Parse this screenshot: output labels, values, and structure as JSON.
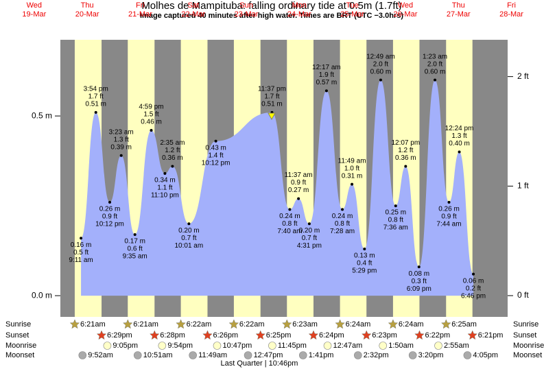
{
  "chart_data": {
    "type": "area",
    "title": "Molhes de Mampituba: falling  ordinary tide at 0.5m (1.7ft)",
    "subtitle": "Image captured 40 minutes after high water. Times are BRT (UTC −3.0hrs)",
    "moon_phase": "Last Quarter | 10:46pm",
    "days": {
      "weekday": [
        "Wed",
        "Thu",
        "Fri",
        "Sat",
        "Sun",
        "Mon",
        "Tue",
        "Wed",
        "Thu",
        "Fri"
      ],
      "date": [
        "19-Mar",
        "20-Mar",
        "21-Mar",
        "22-Mar",
        "23-Mar",
        "24-Mar",
        "25-Mar",
        "26-Mar",
        "27-Mar",
        "28-Mar"
      ]
    },
    "ylim": [
      -0.059,
      0.712
    ],
    "yticks": [
      {
        "value": 0,
        "label": "0.0 m"
      },
      {
        "value": 0.5,
        "label": "0.5 m"
      }
    ],
    "y2lim": [
      -0.194,
      2.336
    ],
    "y2ticks": [
      {
        "value": 0,
        "label": "0 ft"
      },
      {
        "value": 1,
        "label": "1 ft"
      },
      {
        "value": 2,
        "label": "2 ft"
      }
    ],
    "color": "#a3b0fb",
    "tides": {
      "day": [
        "20-Mar",
        "20-Mar",
        "20-Mar",
        "21-Mar",
        "21-Mar",
        "21-Mar",
        "21-Mar",
        "22-Mar",
        "22-Mar",
        "22-Mar",
        "23-Mar",
        "24-Mar",
        "24-Mar",
        "24-Mar",
        "25-Mar",
        "25-Mar",
        "25-Mar",
        "25-Mar",
        "26-Mar",
        "26-Mar",
        "26-Mar",
        "26-Mar",
        "27-Mar",
        "27-Mar",
        "27-Mar",
        "27-Mar"
      ],
      "time": [
        "9:11 am",
        "3:54 pm",
        "10:12 pm",
        "3:23 am",
        "9:35 am",
        "4:59 pm",
        "11:10 pm",
        "2:35 am",
        "10:01 am",
        "10:12 pm",
        "11:37 pm",
        "7:40 am",
        "11:37 am",
        "4:31 pm",
        "12:17 am",
        "7:28 am",
        "11:49 am",
        "5:29 pm",
        "12:49 am",
        "7:36 am",
        "12:07 pm",
        "6:09 pm",
        "1:23 am",
        "7:44 am",
        "12:24 pm",
        "6:46 pm"
      ],
      "values": [
        0.16,
        0.51,
        0.26,
        0.39,
        0.17,
        0.46,
        0.34,
        0.36,
        0.2,
        0.43,
        0.51,
        0.24,
        0.27,
        0.2,
        0.57,
        0.24,
        0.31,
        0.13,
        0.6,
        0.25,
        0.36,
        0.08,
        0.6,
        0.26,
        0.4,
        0.06
      ],
      "value_labels": [
        "0.16 m",
        "0.51 m",
        "0.26 m",
        "0.39 m",
        "0.17 m",
        "0.46 m",
        "0.34 m",
        "0.36 m",
        "0.20 m",
        "0.43 m",
        "0.51 m",
        "0.24 m",
        "0.27 m",
        "0.20 m",
        "0.57 m",
        "0.24 m",
        "0.31 m",
        "0.13 m",
        "0.60 m",
        "0.25 m",
        "0.36 m",
        "0.08 m",
        "0.60 m",
        "0.26 m",
        "0.40 m",
        "0.06 m"
      ],
      "ft_labels": [
        "0.5 ft",
        "1.7 ft",
        "0.9 ft",
        "1.3 ft",
        "0.6 ft",
        "1.5 ft",
        "1.1 ft",
        "1.2 ft",
        "0.7 ft",
        "1.4 ft",
        "1.7 ft",
        "0.8 ft",
        "0.9 ft",
        "0.7 ft",
        "1.9 ft",
        "0.8 ft",
        "1.0 ft",
        "0.4 ft",
        "2.0 ft",
        "0.8 ft",
        "1.2 ft",
        "0.3 ft",
        "2.0 ft",
        "0.9 ft",
        "1.3 ft",
        "0.2 ft"
      ]
    },
    "rows": [
      {
        "name": "Sunrise",
        "icon": "sunrise",
        "day": [
          "20-Mar",
          "21-Mar",
          "22-Mar",
          "23-Mar",
          "24-Mar",
          "25-Mar",
          "26-Mar",
          "27-Mar"
        ],
        "time": [
          "6:21am",
          "6:21am",
          "6:22am",
          "6:22am",
          "6:23am",
          "6:24am",
          "6:24am",
          "6:25am"
        ]
      },
      {
        "name": "Sunset",
        "icon": "sunset",
        "day": [
          "20-Mar",
          "21-Mar",
          "22-Mar",
          "23-Mar",
          "24-Mar",
          "25-Mar",
          "26-Mar",
          "27-Mar"
        ],
        "time": [
          "6:29pm",
          "6:28pm",
          "6:26pm",
          "6:25pm",
          "6:24pm",
          "6:23pm",
          "6:22pm",
          "6:21pm"
        ]
      },
      {
        "name": "Moonrise",
        "icon": "moonrise",
        "day": [
          "20-Mar",
          "21-Mar",
          "22-Mar",
          "23-Mar",
          "25-Mar",
          "26-Mar",
          "27-Mar"
        ],
        "time": [
          "9:05pm",
          "9:54pm",
          "10:47pm",
          "11:45pm",
          "12:47am",
          "1:50am",
          "2:55am"
        ]
      },
      {
        "name": "Moonset",
        "icon": "moonset",
        "day": [
          "20-Mar",
          "21-Mar",
          "22-Mar",
          "23-Mar",
          "24-Mar",
          "25-Mar",
          "26-Mar",
          "27-Mar"
        ],
        "time": [
          "9:52am",
          "10:51am",
          "11:49am",
          "12:47pm",
          "1:41pm",
          "2:32pm",
          "3:20pm",
          "4:05pm"
        ]
      }
    ]
  }
}
